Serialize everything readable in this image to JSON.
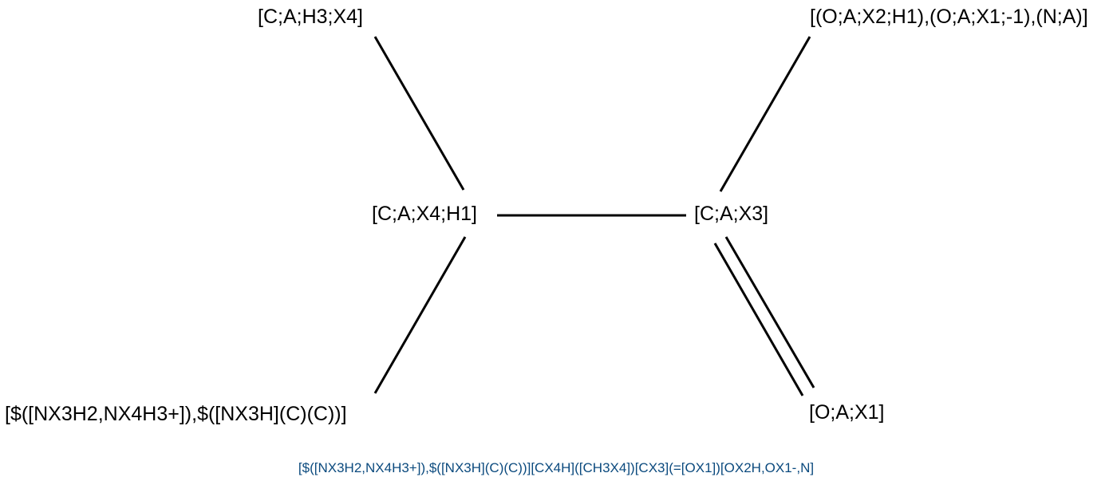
{
  "atoms": {
    "methyl": "[C;A;H3;X4]",
    "alpha_carbon": "[C;A;X4;H1]",
    "carbonyl_carbon": "[C;A;X3]",
    "hydroxyl_group": "[(O;A;X2;H1),(O;A;X1;-1),(N;A)]",
    "amine_group": "[$([NX3H2,NX4H3+]),$([NX3H](C)(C))]",
    "carbonyl_oxygen": "[O;A;X1]"
  },
  "smarts_string": "[$([NX3H2,NX4H3+]),$([NX3H](C)(C))][CX4H]([CH3X4])[CX3](=[OX1])[OX2H,OX1-,N]",
  "colors": {
    "atom_text": "#000000",
    "bond": "#000000",
    "smarts_text": "#0b4a7e",
    "background": "#ffffff"
  }
}
